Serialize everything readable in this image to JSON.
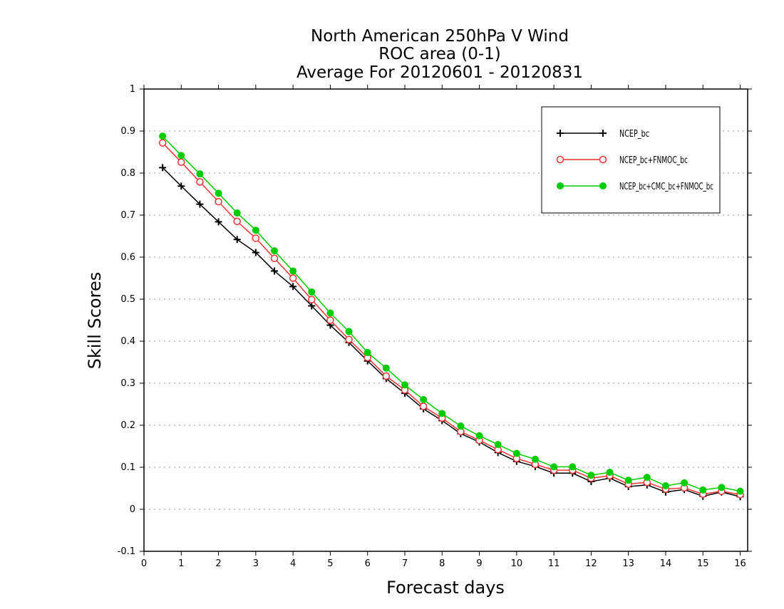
{
  "chart_data": {
    "type": "line",
    "title_lines": [
      "North American 250hPa V Wind",
      "ROC area (0-1)",
      "Average For 20120601 - 20120831"
    ],
    "xlabel": "Forecast days",
    "ylabel": "Skill Scores",
    "xlim": [
      0,
      16.2
    ],
    "ylim": [
      -0.1,
      1
    ],
    "x_ticks": [
      0,
      1,
      2,
      3,
      4,
      5,
      6,
      7,
      8,
      9,
      10,
      11,
      12,
      13,
      14,
      15,
      16
    ],
    "y_ticks": [
      -0.1,
      0,
      0.1,
      0.2,
      0.3,
      0.4,
      0.5,
      0.6,
      0.7,
      0.8,
      0.9,
      1
    ],
    "y_tick_labels": [
      "-0.1",
      "0",
      "0.1",
      "0.2",
      "0.3",
      "0.4",
      "0.5",
      "0.6",
      "0.7",
      "0.8",
      "0.9",
      "1"
    ],
    "grid": "horizontal dotted",
    "legend_position": "top-right",
    "x": [
      0.5,
      1,
      1.5,
      2,
      2.5,
      3,
      3.5,
      4,
      4.5,
      5,
      5.5,
      6,
      6.5,
      7,
      7.5,
      8,
      8.5,
      9,
      9.5,
      10,
      10.5,
      11,
      11.5,
      12,
      12.5,
      13,
      13.5,
      14,
      14.5,
      15,
      15.5,
      16
    ],
    "series": [
      {
        "name": "NCEP_bc",
        "color": "#000000",
        "marker": "plus",
        "values": [
          0.813,
          0.769,
          0.726,
          0.684,
          0.642,
          0.611,
          0.567,
          0.53,
          0.484,
          0.438,
          0.397,
          0.353,
          0.311,
          0.276,
          0.239,
          0.211,
          0.18,
          0.16,
          0.135,
          0.114,
          0.102,
          0.086,
          0.086,
          0.066,
          0.074,
          0.054,
          0.058,
          0.041,
          0.047,
          0.031,
          0.041,
          0.03
        ]
      },
      {
        "name": "NCEP_bc+FNMOC_bc",
        "color": "#ee3333",
        "marker": "open-circle",
        "values": [
          0.872,
          0.826,
          0.779,
          0.732,
          0.685,
          0.645,
          0.597,
          0.55,
          0.499,
          0.45,
          0.404,
          0.361,
          0.317,
          0.284,
          0.245,
          0.217,
          0.185,
          0.164,
          0.142,
          0.121,
          0.107,
          0.093,
          0.093,
          0.074,
          0.08,
          0.06,
          0.064,
          0.048,
          0.051,
          0.036,
          0.043,
          0.035
        ]
      },
      {
        "name": "NCEP_bc+CMC_bc+FNMOC_bc",
        "color": "#00cc00",
        "marker": "filled-circle",
        "values": [
          0.888,
          0.842,
          0.798,
          0.752,
          0.705,
          0.664,
          0.615,
          0.567,
          0.517,
          0.467,
          0.423,
          0.373,
          0.336,
          0.296,
          0.261,
          0.228,
          0.198,
          0.175,
          0.154,
          0.133,
          0.119,
          0.101,
          0.101,
          0.081,
          0.088,
          0.069,
          0.076,
          0.056,
          0.063,
          0.046,
          0.052,
          0.043
        ]
      }
    ]
  }
}
